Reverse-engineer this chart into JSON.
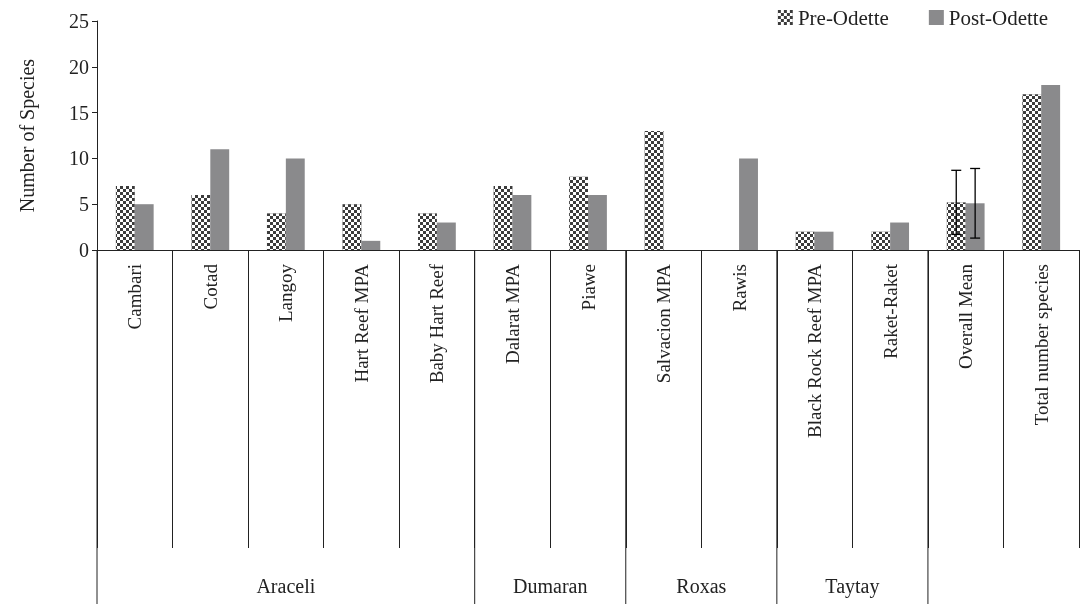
{
  "chart_data": {
    "type": "bar",
    "ylabel": "Number of Species",
    "categories": [
      "Cambari",
      "Cotad",
      "Langoy",
      "Hart Reef MPA",
      "Baby Hart Reef",
      "Dalarat MPA",
      "Piawe",
      "Salvacion MPA",
      "Rawis",
      "Black Rock Reef MPA",
      "Raket-Raket",
      "Overall Mean",
      "Total number species"
    ],
    "series": [
      {
        "name": "Pre-Odette",
        "color": "#3c3c3c",
        "values": [
          7,
          6,
          4,
          5,
          4,
          7,
          8,
          13,
          0,
          2,
          2,
          5.2,
          17
        ],
        "errors": [
          null,
          null,
          null,
          null,
          null,
          null,
          null,
          null,
          null,
          null,
          null,
          3.5,
          null
        ]
      },
      {
        "name": "Post-Odette",
        "color": "#8a8a8c",
        "values": [
          5,
          11,
          10,
          1,
          3,
          6,
          6,
          0,
          10,
          2,
          3,
          5.1,
          18
        ],
        "errors": [
          null,
          null,
          null,
          null,
          null,
          null,
          null,
          null,
          null,
          null,
          null,
          3.8,
          null
        ]
      }
    ],
    "annotations": [
      "Araceli",
      "Dumaran",
      "Roxas",
      "Taytay"
    ],
    "ylim": [
      0,
      25
    ],
    "yticks": [
      0,
      5,
      10,
      15,
      20,
      25
    ],
    "grid": false,
    "legend": "top right"
  }
}
